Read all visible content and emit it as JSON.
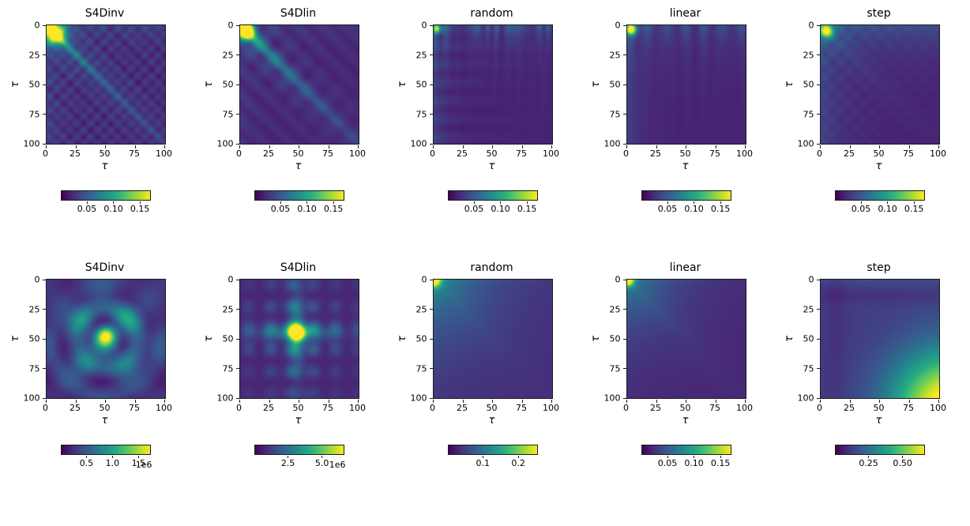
{
  "figure": {
    "background": "#ffffff",
    "colormap": "viridis",
    "axis_color": "#1a1a1a",
    "viridis_anchors": [
      "#440154",
      "#472c7a",
      "#3b518b",
      "#2c718e",
      "#21918c",
      "#27ad81",
      "#5cc863",
      "#aadc32",
      "#fde725"
    ]
  },
  "chart_data": [
    {
      "type": "heatmap",
      "row": 1,
      "title": "S4Dinv",
      "xlabel": "τ",
      "ylabel": "τ",
      "xticks": [
        "0",
        "25",
        "50",
        "75",
        "100"
      ],
      "yticks": [
        "0",
        "25",
        "50",
        "75",
        "100"
      ],
      "xlim": [
        0,
        100
      ],
      "ylim": [
        100,
        0
      ],
      "pattern": "s4dinv_r1",
      "description": "Bright yellow hotspot near (5,5) with diagonal streaks along tau=tau and fine grid texture on dark purple background",
      "colorbar": {
        "vmin": 0,
        "vmax": 0.167,
        "exponent": "",
        "ticks": [
          {
            "label": "0.05",
            "value": 0.05
          },
          {
            "label": "0.10",
            "value": 0.1
          },
          {
            "label": "0.15",
            "value": 0.15
          }
        ]
      }
    },
    {
      "type": "heatmap",
      "row": 1,
      "title": "S4Dlin",
      "xlabel": "τ",
      "ylabel": "τ",
      "xticks": [
        "0",
        "25",
        "50",
        "75",
        "100"
      ],
      "yticks": [
        "0",
        "25",
        "50",
        "75",
        "100"
      ],
      "xlim": [
        0,
        100
      ],
      "ylim": [
        100,
        0
      ],
      "pattern": "s4dlin_r1",
      "description": "Bright yellow spot at top-left corner with strong smooth diagonal band and wavy streaks fading toward bottom-right",
      "colorbar": {
        "vmin": 0,
        "vmax": 0.167,
        "exponent": "",
        "ticks": [
          {
            "label": "0.05",
            "value": 0.05
          },
          {
            "label": "0.10",
            "value": 0.1
          },
          {
            "label": "0.15",
            "value": 0.15
          }
        ]
      }
    },
    {
      "type": "heatmap",
      "row": 1,
      "title": "random",
      "xlabel": "τ",
      "ylabel": "τ",
      "xticks": [
        "0",
        "25",
        "50",
        "75",
        "100"
      ],
      "yticks": [
        "0",
        "25",
        "50",
        "75",
        "100"
      ],
      "xlim": [
        0,
        100
      ],
      "ylim": [
        100,
        0
      ],
      "pattern": "random_r1",
      "description": "Mostly dark purple; faint irregular vertical banding near the top edge and a tiny bright spot at the top-left corner",
      "colorbar": {
        "vmin": 0,
        "vmax": 0.167,
        "exponent": "",
        "ticks": [
          {
            "label": "0.05",
            "value": 0.05
          },
          {
            "label": "0.10",
            "value": 0.1
          },
          {
            "label": "0.15",
            "value": 0.15
          }
        ]
      }
    },
    {
      "type": "heatmap",
      "row": 1,
      "title": "linear",
      "xlabel": "τ",
      "ylabel": "τ",
      "xticks": [
        "0",
        "25",
        "50",
        "75",
        "100"
      ],
      "yticks": [
        "0",
        "25",
        "50",
        "75",
        "100"
      ],
      "xlim": [
        0,
        100
      ],
      "ylim": [
        100,
        0
      ],
      "pattern": "linear_r1",
      "description": "Dark field with a small bright green spot in the top-left corner and faint vertical stripes near the top",
      "colorbar": {
        "vmin": 0,
        "vmax": 0.167,
        "exponent": "",
        "ticks": [
          {
            "label": "0.05",
            "value": 0.05
          },
          {
            "label": "0.10",
            "value": 0.1
          },
          {
            "label": "0.15",
            "value": 0.15
          }
        ]
      }
    },
    {
      "type": "heatmap",
      "row": 1,
      "title": "step",
      "xlabel": "τ",
      "ylabel": "τ",
      "xticks": [
        "0",
        "25",
        "50",
        "75",
        "100"
      ],
      "yticks": [
        "0",
        "25",
        "50",
        "75",
        "100"
      ],
      "xlim": [
        0,
        100
      ],
      "ylim": [
        100,
        0
      ],
      "pattern": "step_r1",
      "description": "Dark field with a small teal-green hotspot at the top-left corner and faint texture along top and left edges",
      "colorbar": {
        "vmin": 0,
        "vmax": 0.167,
        "exponent": "",
        "ticks": [
          {
            "label": "0.05",
            "value": 0.05
          },
          {
            "label": "0.10",
            "value": 0.1
          },
          {
            "label": "0.15",
            "value": 0.15
          }
        ]
      }
    },
    {
      "type": "heatmap",
      "row": 2,
      "title": "S4Dinv",
      "xlabel": "τ",
      "ylabel": "τ",
      "xticks": [
        "0",
        "25",
        "50",
        "75",
        "100"
      ],
      "yticks": [
        "0",
        "25",
        "50",
        "75",
        "100"
      ],
      "xlim": [
        0,
        100
      ],
      "ylim": [
        100,
        0
      ],
      "pattern": "s4dinv_r2",
      "description": "Wavy concentric teal-green blobs centered around (50,50) with a bright central spot on dark background",
      "colorbar": {
        "vmin": 0,
        "vmax": 1.7,
        "exponent": "1e6",
        "ticks": [
          {
            "label": "0.5",
            "value": 0.5
          },
          {
            "label": "1.0",
            "value": 1.0
          },
          {
            "label": "1.5",
            "value": 1.5
          }
        ]
      }
    },
    {
      "type": "heatmap",
      "row": 2,
      "title": "S4Dlin",
      "xlabel": "τ",
      "ylabel": "τ",
      "xticks": [
        "0",
        "25",
        "50",
        "75",
        "100"
      ],
      "yticks": [
        "0",
        "25",
        "50",
        "75",
        "100"
      ],
      "xlim": [
        0,
        100
      ],
      "ylim": [
        100,
        0
      ],
      "pattern": "s4dlin_r2",
      "description": "Grid-like lattice of dots with a bright yellow-green peak near the center (about 48,45)",
      "colorbar": {
        "vmin": 0,
        "vmax": 6.5,
        "exponent": "1e6",
        "ticks": [
          {
            "label": "2.5",
            "value": 2.5
          },
          {
            "label": "5.0",
            "value": 5.0
          }
        ]
      }
    },
    {
      "type": "heatmap",
      "row": 2,
      "title": "random",
      "xlabel": "τ",
      "ylabel": "τ",
      "xticks": [
        "0",
        "25",
        "50",
        "75",
        "100"
      ],
      "yticks": [
        "0",
        "25",
        "50",
        "75",
        "100"
      ],
      "xlim": [
        0,
        100
      ],
      "ylim": [
        100,
        0
      ],
      "pattern": "random_r2",
      "description": "Bright spot at the top-left corner with a smooth glow decaying diagonally toward bottom-right",
      "colorbar": {
        "vmin": 0,
        "vmax": 0.25,
        "exponent": "",
        "ticks": [
          {
            "label": "0.1",
            "value": 0.1
          },
          {
            "label": "0.2",
            "value": 0.2
          }
        ]
      }
    },
    {
      "type": "heatmap",
      "row": 2,
      "title": "linear",
      "xlabel": "τ",
      "ylabel": "τ",
      "xticks": [
        "0",
        "25",
        "50",
        "75",
        "100"
      ],
      "yticks": [
        "0",
        "25",
        "50",
        "75",
        "100"
      ],
      "xlim": [
        0,
        100
      ],
      "ylim": [
        100,
        0
      ],
      "pattern": "linear_r2",
      "description": "Bright green spot at the top-left corner with a faint diagonal glow fading toward bottom-right",
      "colorbar": {
        "vmin": 0,
        "vmax": 0.167,
        "exponent": "",
        "ticks": [
          {
            "label": "0.05",
            "value": 0.05
          },
          {
            "label": "0.10",
            "value": 0.1
          },
          {
            "label": "0.15",
            "value": 0.15
          }
        ]
      }
    },
    {
      "type": "heatmap",
      "row": 2,
      "title": "step",
      "xlabel": "τ",
      "ylabel": "τ",
      "xticks": [
        "0",
        "25",
        "50",
        "75",
        "100"
      ],
      "yticks": [
        "0",
        "25",
        "50",
        "75",
        "100"
      ],
      "xlim": [
        0,
        100
      ],
      "ylim": [
        100,
        0
      ],
      "pattern": "step_r2",
      "description": "Smooth gradient from dark purple at top-left to a bright yellow-green glow in the bottom-right corner",
      "colorbar": {
        "vmin": 0,
        "vmax": 0.65,
        "exponent": "",
        "ticks": [
          {
            "label": "0.25",
            "value": 0.25
          },
          {
            "label": "0.50",
            "value": 0.5
          }
        ]
      }
    }
  ]
}
